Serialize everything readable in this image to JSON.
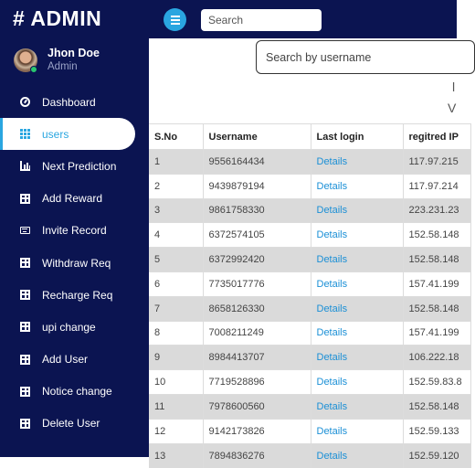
{
  "header": {
    "brand": "# ADMIN",
    "search_placeholder": "Search"
  },
  "profile": {
    "name": "Jhon Doe",
    "role": "Admin"
  },
  "sidebar": {
    "items": [
      {
        "label": "Dashboard",
        "icon": "dashboard-icon"
      },
      {
        "label": "users",
        "icon": "grid-icon",
        "active": true
      },
      {
        "label": "Next Prediction",
        "icon": "chart-icon"
      },
      {
        "label": "Add Reward",
        "icon": "table-icon"
      },
      {
        "label": "Invite Record",
        "icon": "keyboard-icon"
      },
      {
        "label": "Withdraw Req",
        "icon": "table-icon"
      },
      {
        "label": "Recharge Req",
        "icon": "table-icon"
      },
      {
        "label": "upi change",
        "icon": "table-icon"
      },
      {
        "label": "Add User",
        "icon": "table-icon"
      },
      {
        "label": "Notice change",
        "icon": "table-icon"
      },
      {
        "label": "Delete User",
        "icon": "table-icon"
      }
    ]
  },
  "main": {
    "search_placeholder": "Search by username",
    "fragment_1": "l",
    "fragment_2": "V",
    "table": {
      "headers": [
        "S.No",
        "Username",
        "Last login",
        "regitred IP"
      ],
      "details_label": "Details",
      "rows": [
        {
          "sno": "1",
          "username": "9556164434",
          "ip": "117.97.215"
        },
        {
          "sno": "2",
          "username": "9439879194",
          "ip": "117.97.214"
        },
        {
          "sno": "3",
          "username": "9861758330",
          "ip": "223.231.23"
        },
        {
          "sno": "4",
          "username": "6372574105",
          "ip": "152.58.148"
        },
        {
          "sno": "5",
          "username": "6372992420",
          "ip": "152.58.148"
        },
        {
          "sno": "6",
          "username": "7735017776",
          "ip": "157.41.199"
        },
        {
          "sno": "7",
          "username": "8658126330",
          "ip": "152.58.148"
        },
        {
          "sno": "8",
          "username": "7008211249",
          "ip": "157.41.199"
        },
        {
          "sno": "9",
          "username": "8984413707",
          "ip": "106.222.18"
        },
        {
          "sno": "10",
          "username": "7719528896",
          "ip": "152.59.83.8"
        },
        {
          "sno": "11",
          "username": "7978600560",
          "ip": "152.58.148"
        },
        {
          "sno": "12",
          "username": "9142173826",
          "ip": "152.59.133"
        },
        {
          "sno": "13",
          "username": "7894836276",
          "ip": "152.59.120"
        }
      ]
    }
  },
  "colors": {
    "sidebar_bg": "#0b1451",
    "accent": "#2aa6e0",
    "link": "#1a8fd6",
    "stripe": "#dadada"
  }
}
